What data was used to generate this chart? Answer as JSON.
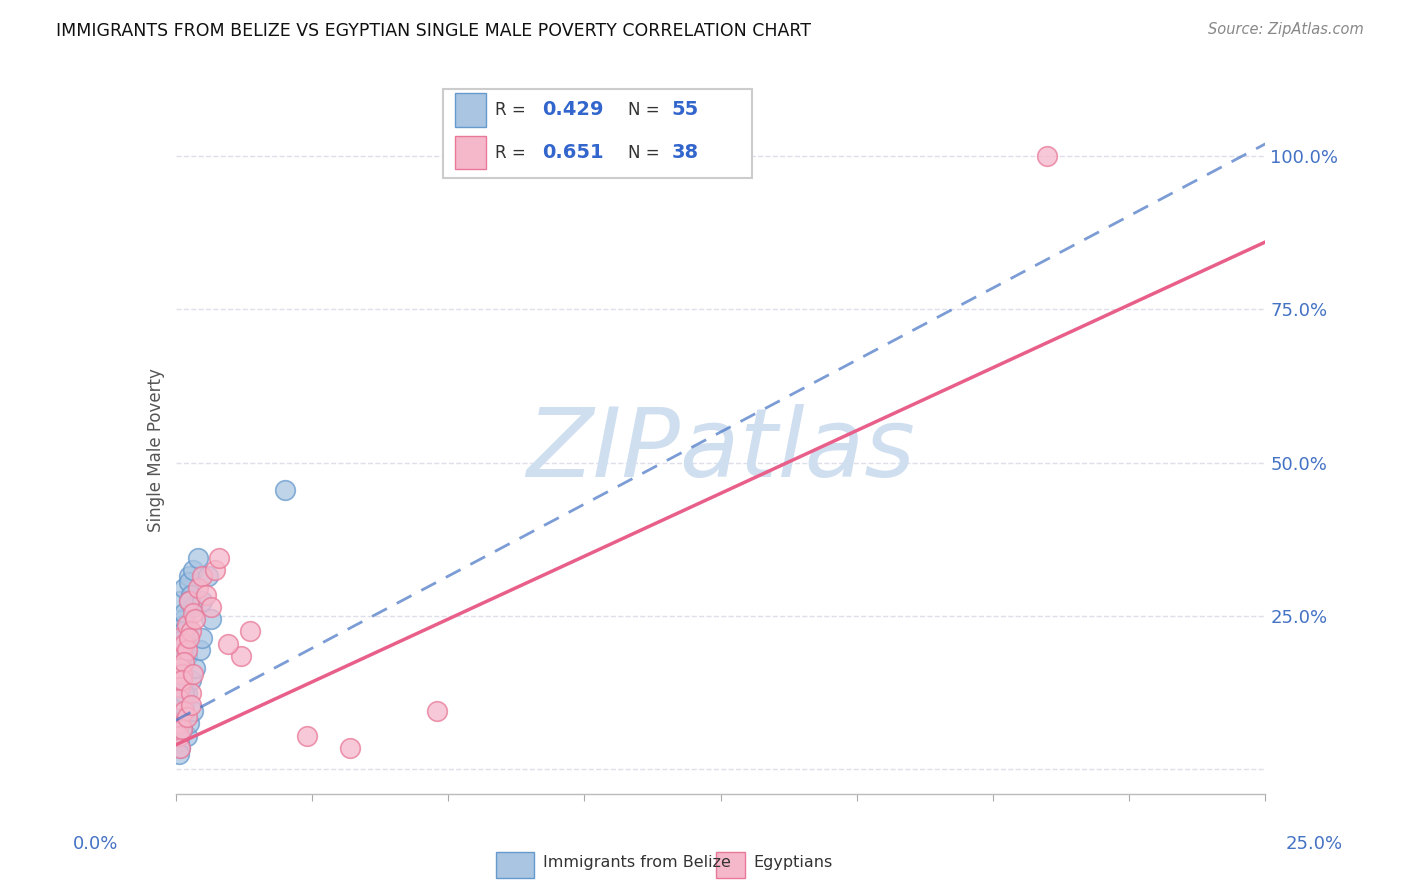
{
  "title": "IMMIGRANTS FROM BELIZE VS EGYPTIAN SINGLE MALE POVERTY CORRELATION CHART",
  "source": "Source: ZipAtlas.com",
  "ylabel": "Single Male Poverty",
  "xmin": 0.0,
  "xmax": 0.25,
  "ymin": -0.04,
  "ymax": 1.08,
  "blue_R": "0.429",
  "blue_N": "55",
  "pink_R": "0.651",
  "pink_N": "38",
  "blue_color": "#aac5e2",
  "blue_edge": "#6699cc",
  "pink_color": "#f5b8cb",
  "pink_edge": "#e87898",
  "blue_line_color": "#4472c4",
  "pink_line_color": "#e8608a",
  "watermark": "ZIPatlas",
  "watermark_color": "#d0dff0",
  "legend_color": "#3366cc",
  "tick_color": "#4472c4",
  "grid_color": "#d8d8e8",
  "background_color": "#ffffff",
  "blue_scatter_x": [
    0.0008,
    0.0012,
    0.0015,
    0.002,
    0.0008,
    0.001,
    0.0018,
    0.003,
    0.0025,
    0.002,
    0.0015,
    0.001,
    0.0008,
    0.002,
    0.003,
    0.0035,
    0.004,
    0.002,
    0.001,
    0.0015,
    0.0008,
    0.001,
    0.0025,
    0.002,
    0.0015,
    0.003,
    0.004,
    0.005,
    0.006,
    0.0075,
    0.001,
    0.0015,
    0.0008,
    0.002,
    0.0025,
    0.0035,
    0.0045,
    0.0055,
    0.006,
    0.008,
    0.0008,
    0.001,
    0.0015,
    0.002,
    0.0025,
    0.003,
    0.004,
    0.0015,
    0.001,
    0.002,
    0.0008,
    0.0015,
    0.001,
    0.0008,
    0.025
  ],
  "blue_scatter_y": [
    0.195,
    0.215,
    0.175,
    0.245,
    0.145,
    0.275,
    0.295,
    0.315,
    0.185,
    0.235,
    0.205,
    0.165,
    0.125,
    0.255,
    0.305,
    0.285,
    0.265,
    0.225,
    0.155,
    0.135,
    0.115,
    0.175,
    0.215,
    0.195,
    0.185,
    0.275,
    0.325,
    0.345,
    0.275,
    0.315,
    0.095,
    0.075,
    0.085,
    0.105,
    0.125,
    0.145,
    0.165,
    0.195,
    0.215,
    0.245,
    0.065,
    0.085,
    0.105,
    0.125,
    0.055,
    0.075,
    0.095,
    0.195,
    0.175,
    0.215,
    0.045,
    0.065,
    0.035,
    0.025,
    0.455
  ],
  "pink_scatter_x": [
    0.0008,
    0.0015,
    0.0025,
    0.001,
    0.002,
    0.003,
    0.004,
    0.005,
    0.006,
    0.007,
    0.008,
    0.0015,
    0.0025,
    0.0035,
    0.0045,
    0.001,
    0.002,
    0.003,
    0.009,
    0.01,
    0.0008,
    0.0015,
    0.001,
    0.002,
    0.0035,
    0.004,
    0.015,
    0.2,
    0.012,
    0.017,
    0.0008,
    0.001,
    0.0015,
    0.0025,
    0.0035,
    0.03,
    0.04,
    0.06
  ],
  "pink_scatter_y": [
    0.215,
    0.185,
    0.235,
    0.165,
    0.205,
    0.275,
    0.255,
    0.295,
    0.315,
    0.285,
    0.265,
    0.155,
    0.195,
    0.225,
    0.245,
    0.135,
    0.175,
    0.215,
    0.325,
    0.345,
    0.115,
    0.145,
    0.075,
    0.095,
    0.125,
    0.155,
    0.185,
    1.0,
    0.205,
    0.225,
    0.055,
    0.035,
    0.065,
    0.085,
    0.105,
    0.055,
    0.035,
    0.095
  ],
  "blue_trend_x": [
    0.0,
    0.25
  ],
  "blue_trend_y": [
    0.08,
    1.02
  ],
  "pink_trend_x": [
    0.0,
    0.25
  ],
  "pink_trend_y": [
    0.04,
    0.86
  ]
}
